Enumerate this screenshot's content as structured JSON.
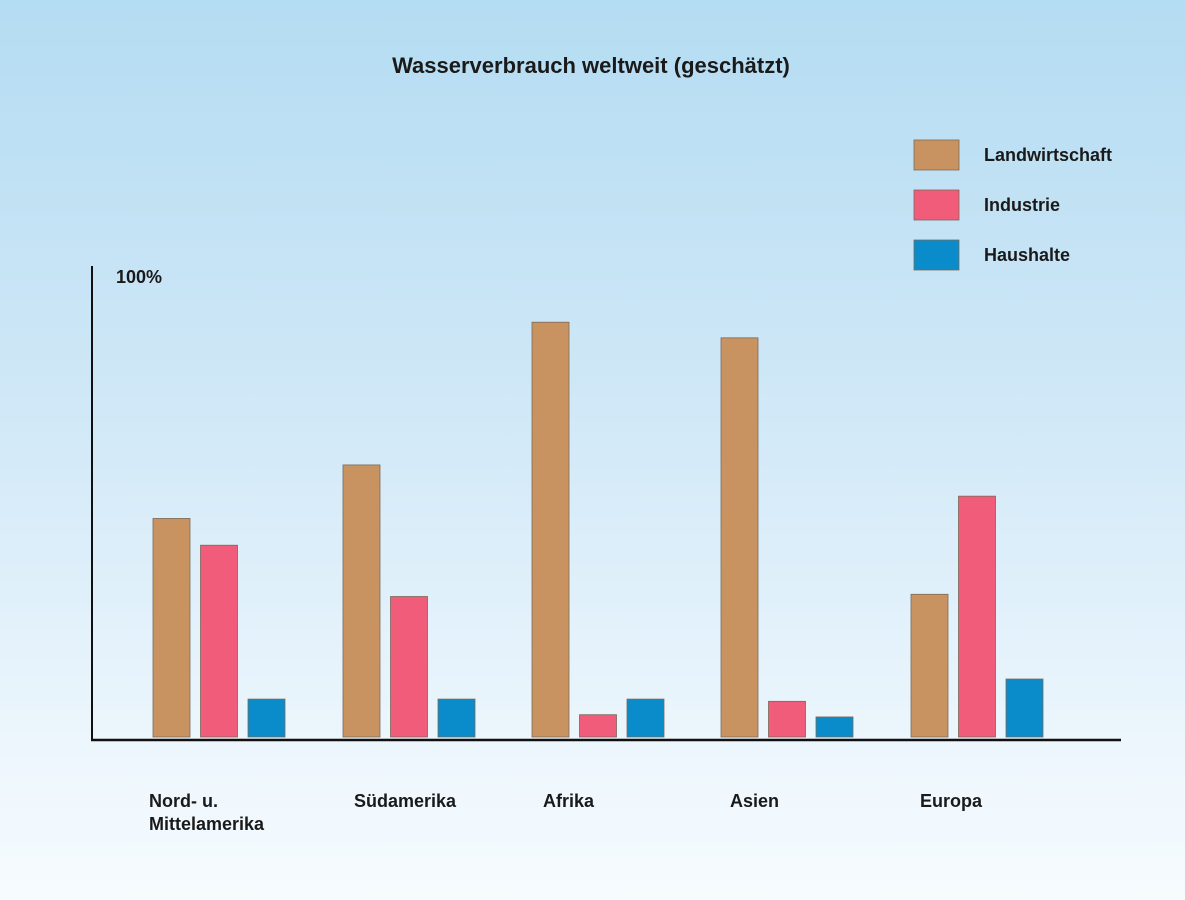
{
  "chart_data": {
    "type": "bar",
    "title": "Wasserverbrauch weltweit (geschätzt)",
    "ylabel": "100%",
    "xlabel": "",
    "ylim": [
      0,
      100
    ],
    "grid": false,
    "legend_position": "top-right",
    "categories": [
      [
        "Nord- u.",
        "Mittelamerika"
      ],
      [
        "Südamerika"
      ],
      [
        "Afrika"
      ],
      [
        "Asien"
      ],
      [
        "Europa"
      ]
    ],
    "series": [
      {
        "name": "Landwirtschaft",
        "color": "#c99361",
        "values": [
          49,
          61,
          93,
          89.5,
          32
        ]
      },
      {
        "name": "Industrie",
        "color": "#f15c7a",
        "values": [
          43,
          31.5,
          5,
          8,
          54
        ]
      },
      {
        "name": "Haushalte",
        "color": "#0a8ccb",
        "values": [
          8.5,
          8.5,
          8.5,
          4.5,
          13
        ]
      }
    ]
  }
}
